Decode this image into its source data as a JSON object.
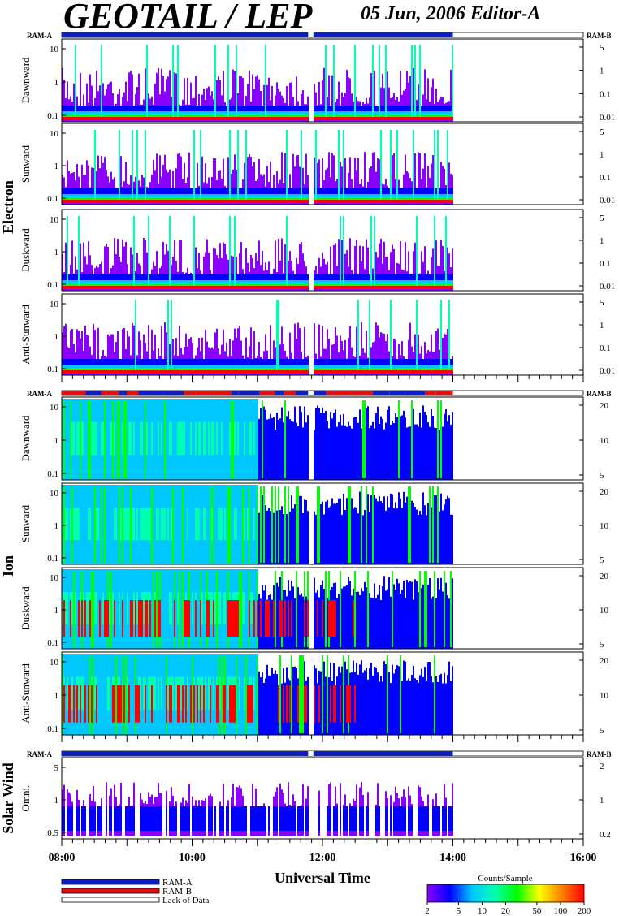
{
  "header": {
    "title": "GEOTAIL / LEP",
    "date_editor": "05 Jun, 2006   Editor-A"
  },
  "colors": {
    "ram_a": "#0a1ec8",
    "ram_b": "#e01010",
    "lack": "#ffffff",
    "colorscale": [
      "#8a00ff",
      "#0000ff",
      "#00c8ff",
      "#00ffb0",
      "#00ff00",
      "#ffff00",
      "#ff8000",
      "#ff0000"
    ]
  },
  "chart_data": {
    "type": "heatmap",
    "xlabel": "Universal Time",
    "x_ticks": [
      "08:00",
      "10:00",
      "12:00",
      "14:00",
      "16:00"
    ],
    "x_range_hours": [
      8,
      16
    ],
    "data_end_hour": 14.0,
    "data_gap_hours": [
      11.78,
      11.86
    ],
    "groups": [
      {
        "name": "Electron",
        "mode_bar": {
          "left_label": "RAM-A",
          "right_label": "RAM-B",
          "mode": "RAM-A"
        },
        "panels": [
          {
            "label": "Dawnward",
            "left_ticks": [
              "10",
              "1",
              "0.1"
            ],
            "right_ticks": [
              "5",
              "1",
              "0.1",
              "0.01"
            ]
          },
          {
            "label": "Sunward",
            "left_ticks": [
              "10",
              "1",
              "0.1"
            ],
            "right_ticks": [
              "5",
              "1",
              "0.1",
              "0.01"
            ]
          },
          {
            "label": "Duskward",
            "left_ticks": [
              "10",
              "1",
              "0.1"
            ],
            "right_ticks": [
              "5",
              "1",
              "0.1",
              "0.01"
            ]
          },
          {
            "label": "Anti-Sunward",
            "left_ticks": [
              "10",
              "1",
              "0.1"
            ],
            "right_ticks": [
              "5",
              "1",
              "0.1",
              "0.01"
            ]
          }
        ]
      },
      {
        "name": "Ion",
        "mode_bar": {
          "left_label": "RAM-A",
          "right_label": "RAM-B",
          "mode": "mixed"
        },
        "panels": [
          {
            "label": "Dawnward",
            "left_ticks": [
              "10",
              "1",
              "0.1"
            ],
            "right_ticks": [
              "20",
              "10",
              "5"
            ]
          },
          {
            "label": "Sunward",
            "left_ticks": [
              "10",
              "1",
              "0.1"
            ],
            "right_ticks": [
              "20",
              "10",
              "5"
            ]
          },
          {
            "label": "Duskward",
            "left_ticks": [
              "10",
              "1",
              "0.1"
            ],
            "right_ticks": [
              "20",
              "10",
              "5"
            ]
          },
          {
            "label": "Anti-Sunward",
            "left_ticks": [
              "10",
              "1",
              "0.1"
            ],
            "right_ticks": [
              "20",
              "10",
              "5"
            ]
          }
        ]
      },
      {
        "name": "Solar Wind",
        "mode_bar": {
          "left_label": "RAM-A",
          "right_label": "RAM-B",
          "mode": "RAM-A"
        },
        "panels": [
          {
            "label": "Omni.",
            "left_ticks": [
              "5",
              "1",
              "0.5"
            ],
            "right_ticks": [
              "2",
              "1",
              "0.2"
            ]
          }
        ]
      }
    ],
    "legend": {
      "items": [
        {
          "label": "RAM-A",
          "color": "#0a1ec8"
        },
        {
          "label": "RAM-B",
          "color": "#e01010"
        },
        {
          "label": "Lack of Data",
          "color": "#ffffff"
        }
      ]
    },
    "colorbar": {
      "title": "Counts/Sample",
      "ticks": [
        "2",
        "5",
        "10",
        "20",
        "50",
        "100",
        "200"
      ],
      "range": [
        2,
        200
      ],
      "scale": "log"
    }
  }
}
